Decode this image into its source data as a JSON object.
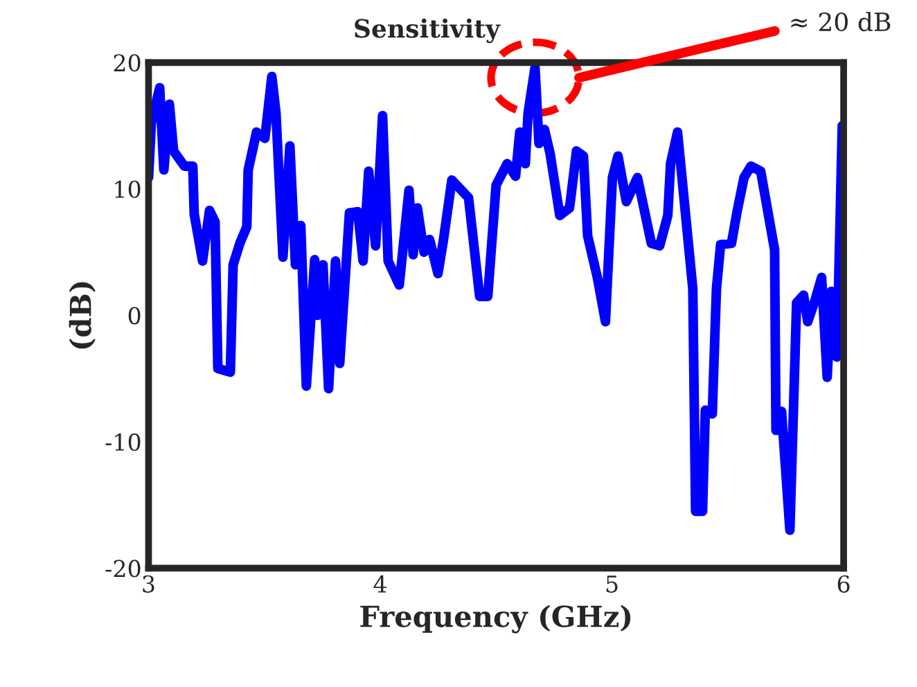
{
  "chart_data": {
    "type": "line",
    "title": "Sensitivity",
    "xlabel": "Frequency (GHz)",
    "ylabel": "(dB)",
    "xlim": [
      3,
      6
    ],
    "xticks": [
      3,
      4,
      5,
      6
    ],
    "ylim": [
      -20,
      20
    ],
    "yticks": [
      -20,
      -10,
      0,
      10,
      20
    ],
    "grid": false,
    "legend": false,
    "marker": "none",
    "line_style": "solid",
    "annotations": [
      "≈ 20 dB"
    ],
    "series": [
      {
        "color": "#0000ff",
        "x": [
          3.0,
          3.012,
          3.048,
          3.066,
          3.09,
          3.108,
          3.155,
          3.191,
          3.197,
          3.233,
          3.263,
          3.287,
          3.299,
          3.353,
          3.365,
          3.394,
          3.424,
          3.43,
          3.466,
          3.502,
          3.532,
          3.55,
          3.58,
          3.61,
          3.634,
          3.657,
          3.681,
          3.717,
          3.729,
          3.753,
          3.777,
          3.807,
          3.825,
          3.867,
          3.903,
          3.926,
          3.95,
          3.98,
          4.01,
          4.034,
          4.082,
          4.124,
          4.142,
          4.16,
          4.189,
          4.213,
          4.249,
          4.273,
          4.309,
          4.381,
          4.429,
          4.464,
          4.5,
          4.548,
          4.584,
          4.602,
          4.626,
          4.638,
          4.668,
          4.685,
          4.709,
          4.733,
          4.775,
          4.817,
          4.847,
          4.877,
          4.895,
          4.937,
          4.972,
          5.002,
          5.026,
          5.062,
          5.11,
          5.17,
          5.206,
          5.241,
          5.253,
          5.283,
          5.349,
          5.361,
          5.391,
          5.403,
          5.433,
          5.451,
          5.469,
          5.516,
          5.54,
          5.57,
          5.6,
          5.642,
          5.702,
          5.708,
          5.732,
          5.768,
          5.797,
          5.827,
          5.845,
          5.875,
          5.905,
          5.929,
          5.947,
          5.971,
          5.994
        ],
        "values": [
          10.9,
          15.2,
          18.0,
          11.5,
          16.7,
          13.0,
          11.8,
          11.8,
          8.0,
          4.3,
          8.3,
          7.4,
          -4.2,
          -4.5,
          4.0,
          5.7,
          7.0,
          11.5,
          14.5,
          14.0,
          18.9,
          16.0,
          4.6,
          13.4,
          4.0,
          7.1,
          -5.6,
          4.4,
          0.0,
          4.0,
          -5.8,
          4.3,
          -3.8,
          8.1,
          8.2,
          4.3,
          11.4,
          5.5,
          15.8,
          4.3,
          2.4,
          9.9,
          4.8,
          8.5,
          5.0,
          6.0,
          3.3,
          6.0,
          10.7,
          9.3,
          1.5,
          1.5,
          10.3,
          12.0,
          11.0,
          14.5,
          12.0,
          16.0,
          19.6,
          13.6,
          14.7,
          12.8,
          7.9,
          8.5,
          13.0,
          12.6,
          6.3,
          3.0,
          -0.5,
          10.9,
          12.6,
          9.0,
          10.9,
          5.7,
          5.5,
          7.9,
          12.0,
          14.5,
          2.1,
          -15.5,
          -15.5,
          -7.5,
          -7.8,
          2.1,
          5.6,
          5.7,
          8.2,
          10.9,
          11.8,
          11.4,
          5.2,
          -9.1,
          -7.6,
          -17.0,
          1.0,
          1.6,
          -0.5,
          1.1,
          3.0,
          -4.9,
          1.9,
          -3.3,
          15.0
        ]
      }
    ]
  }
}
